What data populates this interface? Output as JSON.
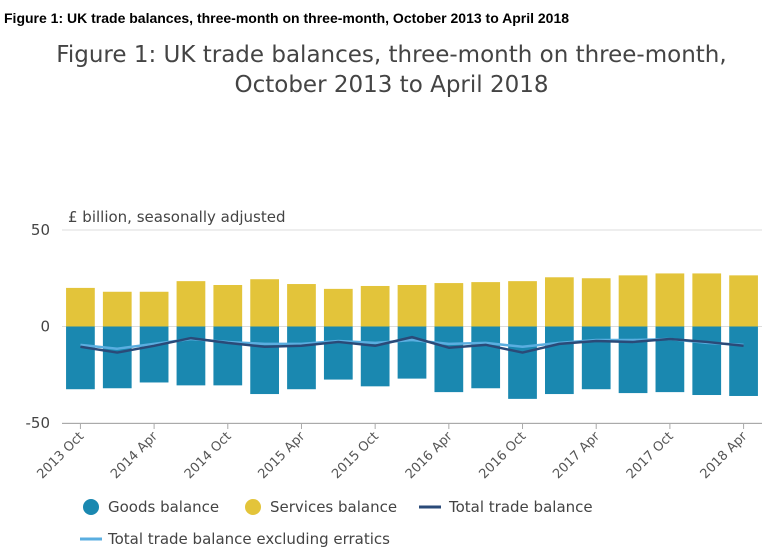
{
  "heading": "Figure 1: UK trade balances, three-month on three-month, October 2013 to April 2018",
  "chart_data": {
    "type": "bar",
    "title_line1": "Figure 1: UK trade balances, three-month on three-month,",
    "title_line2": "October 2013 to April 2018",
    "ylabel": "£ billion, seasonally adjusted",
    "ylim": [
      -50,
      50
    ],
    "yticks": [
      {
        "value": 50,
        "label": "50"
      },
      {
        "value": 0,
        "label": "0"
      },
      {
        "value": -50,
        "label": "-50"
      }
    ],
    "xtick_labels": [
      "2013 Oct",
      "2014 Apr",
      "2014 Oct",
      "2015 Apr",
      "2015 Oct",
      "2016 Apr",
      "2016 Oct",
      "2017 Apr",
      "2017 Oct",
      "2018 Apr"
    ],
    "xtick_every": 2,
    "n_periods": 19,
    "colors": {
      "goods": "#1a88b0",
      "services": "#e3c43a",
      "total": "#2a4a78",
      "total_excl": "#5aaee0",
      "grid": "#dddddd",
      "axis": "#aaaaaa"
    },
    "series": [
      {
        "name": "Goods balance",
        "kind": "bar",
        "values": [
          -32.5,
          -32,
          -29,
          -30.5,
          -30.5,
          -35,
          -32.5,
          -27.5,
          -31,
          -27,
          -34,
          -32,
          -37.5,
          -35,
          -32.5,
          -34.5,
          -34,
          -35.5,
          -36
        ]
      },
      {
        "name": "Services balance",
        "kind": "bar",
        "values": [
          20,
          18,
          18,
          23.5,
          21.5,
          24.5,
          22,
          19.5,
          21,
          21.5,
          22.5,
          23,
          23.5,
          25.5,
          25,
          26.5,
          27.5,
          27.5,
          26.5
        ]
      },
      {
        "name": "Total trade balance",
        "kind": "line",
        "values": [
          -10.5,
          -13.5,
          -10,
          -6,
          -8.5,
          -10.5,
          -10,
          -8,
          -10,
          -5.5,
          -11,
          -9.5,
          -13.5,
          -9,
          -7.5,
          -8,
          -6.5,
          -8,
          -10
        ]
      },
      {
        "name": "Total trade balance excluding erratics",
        "kind": "line",
        "values": [
          -9.5,
          -11.5,
          -9,
          -6.5,
          -8,
          -9,
          -9,
          -7.5,
          -8.5,
          -7,
          -9,
          -8.5,
          -10.5,
          -8.5,
          -7,
          -7,
          -6.5,
          -8.5,
          -9.5
        ]
      }
    ]
  }
}
